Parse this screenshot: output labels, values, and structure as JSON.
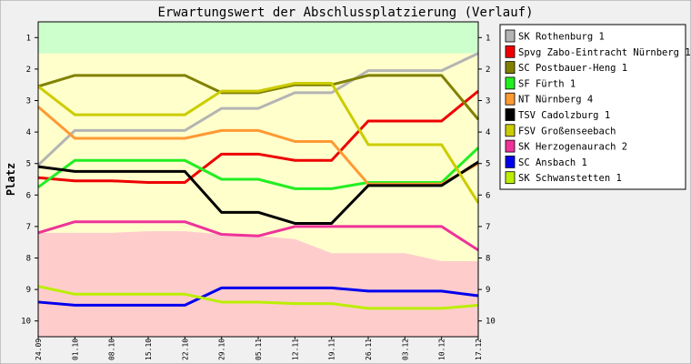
{
  "chart_data": {
    "type": "line",
    "title": "Erwartungswert der Abschlussplatzierung (Verlauf)",
    "ylabel": "Platz",
    "xlabel": "",
    "x": [
      "24.09",
      "01.10",
      "08.10",
      "15.10",
      "22.10",
      "29.10",
      "05.11",
      "12.11",
      "19.11",
      "26.11",
      "03.12",
      "10.12",
      "17.12"
    ],
    "y_ticks": [
      1,
      2,
      3,
      4,
      5,
      6,
      7,
      8,
      9,
      10
    ],
    "ylim": [
      0.5,
      10.5
    ],
    "y_inverted": true,
    "grid": false,
    "legend_position": "right",
    "zones": [
      {
        "color": "#ccffcc",
        "top": [
          0.5,
          0.5,
          0.5,
          0.5,
          0.5,
          0.5,
          0.5,
          0.5,
          0.5,
          0.5,
          0.5,
          0.5,
          0.5
        ],
        "bottom": [
          1.5,
          1.5,
          1.5,
          1.5,
          1.5,
          1.5,
          1.5,
          1.5,
          1.5,
          1.5,
          1.5,
          1.5,
          1.5
        ]
      },
      {
        "color": "#ffffcc",
        "top": [
          1.5,
          1.5,
          1.5,
          1.5,
          1.5,
          1.5,
          1.5,
          1.5,
          1.5,
          1.5,
          1.5,
          1.5,
          1.5
        ],
        "bottom": [
          7.2,
          7.2,
          7.2,
          7.15,
          7.15,
          7.25,
          7.3,
          7.4,
          7.85,
          7.85,
          7.85,
          8.1,
          8.1
        ]
      },
      {
        "color": "#ffcccc",
        "top": [
          7.2,
          7.2,
          7.2,
          7.15,
          7.15,
          7.25,
          7.3,
          7.4,
          7.85,
          7.85,
          7.85,
          8.1,
          8.1
        ],
        "bottom": [
          10.5,
          10.5,
          10.5,
          10.5,
          10.5,
          10.5,
          10.5,
          10.5,
          10.5,
          10.5,
          10.5,
          10.5,
          10.5
        ]
      }
    ],
    "series": [
      {
        "name": "SK Rothenburg 1",
        "color": "#b4b4b4",
        "values": [
          5.05,
          3.95,
          3.95,
          3.95,
          3.95,
          3.25,
          3.25,
          2.75,
          2.75,
          2.05,
          2.05,
          2.05,
          1.5
        ]
      },
      {
        "name": "Spvg Zabo-Eintracht Nürnberg 1",
        "color": "#ee0000",
        "values": [
          5.45,
          5.55,
          5.55,
          5.6,
          5.6,
          4.7,
          4.7,
          4.9,
          4.9,
          3.65,
          3.65,
          3.65,
          2.7
        ]
      },
      {
        "name": "SC Postbauer-Heng 1",
        "color": "#808000",
        "values": [
          2.55,
          2.2,
          2.2,
          2.2,
          2.2,
          2.75,
          2.75,
          2.5,
          2.5,
          2.2,
          2.2,
          2.2,
          3.6
        ]
      },
      {
        "name": "SF Fürth 1",
        "color": "#22ee22",
        "values": [
          5.75,
          4.9,
          4.9,
          4.9,
          4.9,
          5.5,
          5.5,
          5.8,
          5.8,
          5.6,
          5.6,
          5.6,
          4.5
        ]
      },
      {
        "name": "NT Nürnberg 4",
        "color": "#ff9933",
        "values": [
          3.2,
          4.2,
          4.2,
          4.2,
          4.2,
          3.95,
          3.95,
          4.3,
          4.3,
          5.65,
          5.65,
          5.65,
          5.0
        ]
      },
      {
        "name": "TSV Cadolzburg 1",
        "color": "#000000",
        "values": [
          5.1,
          5.25,
          5.25,
          5.25,
          5.25,
          6.55,
          6.55,
          6.9,
          6.9,
          5.7,
          5.7,
          5.7,
          4.95
        ]
      },
      {
        "name": "FSV Großenseebach",
        "color": "#cccc00",
        "values": [
          2.55,
          3.45,
          3.45,
          3.45,
          3.45,
          2.7,
          2.7,
          2.45,
          2.45,
          4.4,
          4.4,
          4.4,
          6.25
        ]
      },
      {
        "name": "SK Herzogenaurach 2",
        "color": "#ee3399",
        "values": [
          7.2,
          6.85,
          6.85,
          6.85,
          6.85,
          7.25,
          7.3,
          7.0,
          7.0,
          7.0,
          7.0,
          7.0,
          7.75
        ]
      },
      {
        "name": "SC Ansbach 1",
        "color": "#0000ee",
        "values": [
          9.4,
          9.5,
          9.5,
          9.5,
          9.5,
          8.95,
          8.95,
          8.95,
          8.95,
          9.05,
          9.05,
          9.05,
          9.2
        ]
      },
      {
        "name": "SK Schwanstetten 1",
        "color": "#bbee00",
        "values": [
          8.9,
          9.15,
          9.15,
          9.15,
          9.15,
          9.4,
          9.4,
          9.45,
          9.45,
          9.6,
          9.6,
          9.6,
          9.5
        ]
      }
    ]
  }
}
